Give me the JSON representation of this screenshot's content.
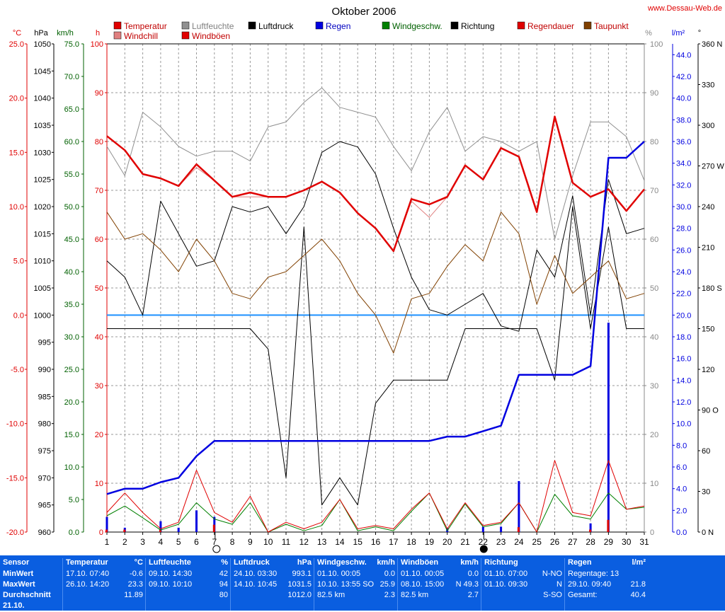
{
  "title": "Oktober 2006",
  "credit": "www.Dessau-Web.de",
  "legend": [
    {
      "name": "Temperatur",
      "color": "#e00000"
    },
    {
      "name": "Luftfeuchte",
      "color": "#909090"
    },
    {
      "name": "Luftdruck",
      "color": "#000000"
    },
    {
      "name": "Regen",
      "color": "#0000e0"
    },
    {
      "name": "Windgeschw.",
      "color": "#008000"
    },
    {
      "name": "Richtung",
      "color": "#000000"
    },
    {
      "name": "Regendauer",
      "color": "#e00000"
    },
    {
      "name": "Taupunkt",
      "color": "#804000"
    },
    {
      "name": "Windchill",
      "color": "#e08080"
    },
    {
      "name": "Windböen",
      "color": "#e00000"
    }
  ],
  "axis_units": {
    "temp": "°C",
    "pressure": "hPa",
    "wind": "km/h",
    "rain_dur": "h",
    "humidity": "%",
    "rain": "l/m²",
    "direction": "°"
  },
  "axis_ticks": {
    "temp": [
      "25.0",
      "20.0",
      "15.0",
      "10.0",
      "5.0",
      "0.0",
      "-5.0",
      "-10.0",
      "-15.0",
      "-20.0"
    ],
    "pressure": [
      "1050",
      "1045",
      "1040",
      "1035",
      "1030",
      "1025",
      "1020",
      "1015",
      "1010",
      "1005",
      "1000",
      "995",
      "990",
      "985",
      "980",
      "975",
      "970",
      "965",
      "960"
    ],
    "wind": [
      "75.0",
      "70.0",
      "65.0",
      "60.0",
      "55.0",
      "50.0",
      "45.0",
      "40.0",
      "35.0",
      "30.0",
      "25.0",
      "20.0",
      "15.0",
      "10.0",
      "5.0",
      "0.0"
    ],
    "rain_dur": [
      "100",
      "90",
      "80",
      "70",
      "60",
      "50",
      "40",
      "30",
      "20",
      "10",
      "0"
    ],
    "humidity": [
      "100",
      "90",
      "80",
      "70",
      "60",
      "50",
      "40",
      "30",
      "20",
      "10",
      "0"
    ],
    "rain": [
      "44.0",
      "42.0",
      "40.0",
      "38.0",
      "36.0",
      "34.0",
      "32.0",
      "30.0",
      "28.0",
      "26.0",
      "24.0",
      "22.0",
      "20.0",
      "18.0",
      "16.0",
      "14.0",
      "12.0",
      "10.0",
      "8.0",
      "6.0",
      "4.0",
      "2.0",
      "0.0"
    ],
    "direction": [
      "360 N",
      "330",
      "300",
      "270 W",
      "240",
      "210",
      "180 S",
      "150",
      "120",
      "90 O",
      "60",
      "30",
      "0 N"
    ]
  },
  "chart_data": {
    "type": "line",
    "title": "Oktober 2006",
    "x": [
      1,
      2,
      3,
      4,
      5,
      6,
      7,
      8,
      9,
      10,
      11,
      12,
      13,
      14,
      15,
      16,
      17,
      18,
      19,
      20,
      21,
      22,
      23,
      24,
      25,
      26,
      27,
      28,
      29,
      30,
      31
    ],
    "series": [
      {
        "name": "Temperatur",
        "axis": "°C",
        "values": [
          16.5,
          15.2,
          13.0,
          12.6,
          11.9,
          13.9,
          12.4,
          10.9,
          11.3,
          10.9,
          10.9,
          11.5,
          12.3,
          11.3,
          9.4,
          8.0,
          5.9,
          10.7,
          10.2,
          10.9,
          13.8,
          12.5,
          15.4,
          14.6,
          9.5,
          18.3,
          12.2,
          10.9,
          11.6,
          9.6,
          11.6
        ]
      },
      {
        "name": "Luftfeuchte",
        "axis": "%",
        "values": [
          79,
          73,
          86,
          83,
          79,
          77,
          78,
          78,
          76,
          83,
          84,
          88,
          91,
          87,
          86,
          85,
          79,
          74,
          82,
          87,
          78,
          81,
          80,
          78,
          80,
          60,
          73,
          84,
          84,
          81,
          72
        ]
      },
      {
        "name": "Luftdruck",
        "axis": "hPa",
        "values": [
          1010,
          1007,
          1000,
          1021,
          1015,
          1009,
          1010,
          1020,
          1019,
          1020,
          1015,
          1020,
          1030,
          1032,
          1031,
          1026,
          1016,
          1007,
          1001,
          1000,
          1002,
          1004,
          998,
          997,
          1012,
          1007,
          1022,
          1000,
          1025,
          1015,
          1016
        ]
      },
      {
        "name": "Regen",
        "axis": "l/m²",
        "values": [
          3.5,
          4.0,
          4.0,
          4.6,
          5.0,
          7.0,
          8.4,
          8.4,
          8.4,
          8.4,
          8.4,
          8.4,
          8.4,
          8.4,
          8.4,
          8.4,
          8.4,
          8.4,
          8.4,
          8.8,
          8.8,
          9.3,
          9.8,
          14.5,
          14.5,
          14.5,
          14.5,
          15.3,
          34.5,
          34.5,
          36.0
        ]
      },
      {
        "name": "Windgeschw.",
        "axis": "km/h",
        "values": [
          2.5,
          4.0,
          2.2,
          0.3,
          1.2,
          4.5,
          2.0,
          1.2,
          4.5,
          0.0,
          1.2,
          0.2,
          1.0,
          5.0,
          0.2,
          0.8,
          0.2,
          3.2,
          6.0,
          0.2,
          4.3,
          0.8,
          1.3,
          4.5,
          0.0,
          5.8,
          2.5,
          2.0,
          6.0,
          3.5,
          3.8
        ]
      },
      {
        "name": "Windböen",
        "axis": "km/h",
        "values": [
          3.0,
          6.0,
          3.0,
          0.5,
          1.5,
          9.5,
          3.0,
          1.5,
          5.5,
          0.0,
          1.5,
          0.5,
          1.5,
          5.0,
          0.5,
          1.0,
          0.5,
          3.5,
          6.0,
          0.5,
          4.5,
          1.0,
          1.5,
          4.5,
          0.0,
          11.0,
          3.0,
          2.5,
          11.0,
          3.5,
          4.0
        ]
      },
      {
        "name": "Richtung",
        "axis": "°",
        "values": [
          150,
          150,
          150,
          150,
          150,
          150,
          150,
          150,
          150,
          135,
          40,
          225,
          20,
          40,
          20,
          95,
          112,
          112,
          112,
          112,
          150,
          150,
          150,
          150,
          150,
          112,
          240,
          150,
          225,
          150,
          150
        ]
      },
      {
        "name": "Taupunkt",
        "axis": "°C",
        "values": [
          9.5,
          7.0,
          7.5,
          6.0,
          4.0,
          7.0,
          5.0,
          2.0,
          1.5,
          3.5,
          4.0,
          5.5,
          7.0,
          5.0,
          2.0,
          0.0,
          -3.5,
          1.5,
          2.0,
          4.5,
          6.5,
          5.0,
          9.5,
          7.5,
          1.0,
          5.5,
          2.0,
          3.5,
          5.0,
          1.5,
          2.0
        ]
      },
      {
        "name": "Windchill",
        "axis": "°C",
        "values": [
          16.5,
          15.2,
          13.0,
          12.6,
          11.9,
          13.6,
          12.4,
          10.9,
          10.9,
          10.9,
          10.9,
          11.5,
          12.3,
          11.3,
          9.4,
          8.0,
          5.9,
          10.5,
          9.0,
          10.9,
          13.8,
          12.5,
          15.4,
          14.6,
          9.5,
          18.3,
          12.2,
          10.9,
          11.6,
          9.6,
          11.6
        ]
      }
    ],
    "daily_rain": {
      "name": "Regen (Tag)",
      "axis": "l/m²",
      "values": [
        1.4,
        0.4,
        0,
        1.0,
        0.4,
        2.0,
        1.4,
        0,
        0,
        0,
        0,
        0,
        0,
        0,
        0,
        0,
        0,
        0,
        0,
        0.4,
        0,
        0.5,
        0.5,
        4.7,
        0,
        0,
        0,
        0.8,
        19.3,
        0,
        0
      ]
    },
    "rain_duration": {
      "name": "Regendauer",
      "axis": "h",
      "values": [
        0.5,
        0.5,
        0,
        0.5,
        0,
        0,
        1.5,
        0,
        0,
        0,
        0,
        0,
        0,
        0,
        0,
        0,
        0,
        0,
        0,
        0,
        0,
        0,
        0,
        1.0,
        0,
        0,
        0,
        0.5,
        2.5,
        0,
        0
      ]
    },
    "reference_line": {
      "axis": "°C",
      "value": 0.0
    },
    "ylim": {
      "temp": [
        -20,
        25
      ],
      "pressure": [
        960,
        1050
      ],
      "wind": [
        0,
        75
      ],
      "rain_dur": [
        0,
        100
      ],
      "humidity": [
        0,
        100
      ],
      "rain": [
        0,
        45
      ],
      "direction": [
        0,
        360
      ]
    },
    "grid": true,
    "moon_markers": [
      {
        "day": 7,
        "phase": "full"
      },
      {
        "day": 22,
        "phase": "new"
      }
    ]
  },
  "stats": {
    "row_labels": [
      "Sensor",
      "MinWert",
      "MaxWert",
      "Durchschnitt",
      "21.10."
    ],
    "columns": [
      {
        "header": "Temperatur",
        "unit": "°C",
        "rows": [
          [
            "17.10.  07:40",
            "-0.6"
          ],
          [
            "26.10.  14:20",
            "23.3"
          ],
          [
            "",
            "11.89"
          ]
        ]
      },
      {
        "header": "Luftfeuchte",
        "unit": "%",
        "rows": [
          [
            "09.10.  14:30",
            "42"
          ],
          [
            "09.10.  10:10",
            "94"
          ],
          [
            "",
            "80"
          ]
        ]
      },
      {
        "header": "Luftdruck",
        "unit": "hPa",
        "rows": [
          [
            "24.10.  03:30",
            "993.1"
          ],
          [
            "14.10.  10:45",
            "1031.5"
          ],
          [
            "",
            "1012.0"
          ]
        ]
      },
      {
        "header": "Windgeschw.",
        "unit": "km/h",
        "rows": [
          [
            "01.10.  00:05",
            "0.0"
          ],
          [
            "10.10.  13:55 SO",
            "25.9"
          ],
          [
            "82.5 km",
            "2.3"
          ]
        ]
      },
      {
        "header": "Windböen",
        "unit": "km/h",
        "rows": [
          [
            "01.10.  00:05",
            "0.0"
          ],
          [
            "08.10.  15:00",
            "N 49.3"
          ],
          [
            "82.5 km",
            "2.7"
          ]
        ]
      },
      {
        "header": "Richtung",
        "unit": "",
        "rows": [
          [
            "01.10.  07:00",
            "N-NO"
          ],
          [
            "01.10.  09:30",
            "N"
          ],
          [
            "",
            "S-SO"
          ]
        ]
      },
      {
        "header": "Regen",
        "unit": "l/m²",
        "rows": [
          [
            "Regentage: 13",
            ""
          ],
          [
            "29.10.  09:40",
            "21.8"
          ],
          [
            "Gesamt:",
            "40.4"
          ]
        ]
      }
    ]
  }
}
